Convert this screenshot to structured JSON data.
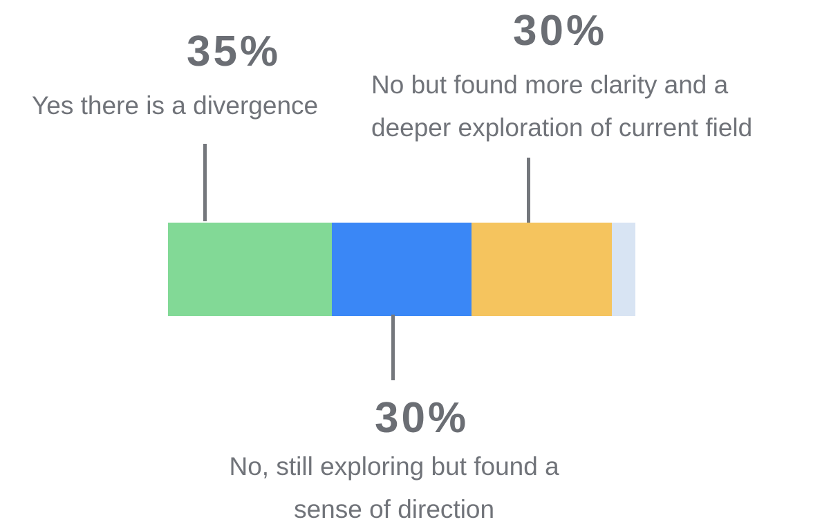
{
  "chart_data": {
    "type": "stacked-bar",
    "categories": [
      "Yes there is a divergence",
      "No, still exploring but found a\nsense of direction",
      "No but found more clarity and a\ndeeper exploration of current field",
      null
    ],
    "values": [
      35,
      30,
      30,
      5
    ],
    "value_labels": [
      "35%",
      "30%",
      "30%",
      null
    ],
    "colors": [
      "#82d996",
      "#3a87f6",
      "#f5c45e",
      "#d8e4f3"
    ]
  }
}
